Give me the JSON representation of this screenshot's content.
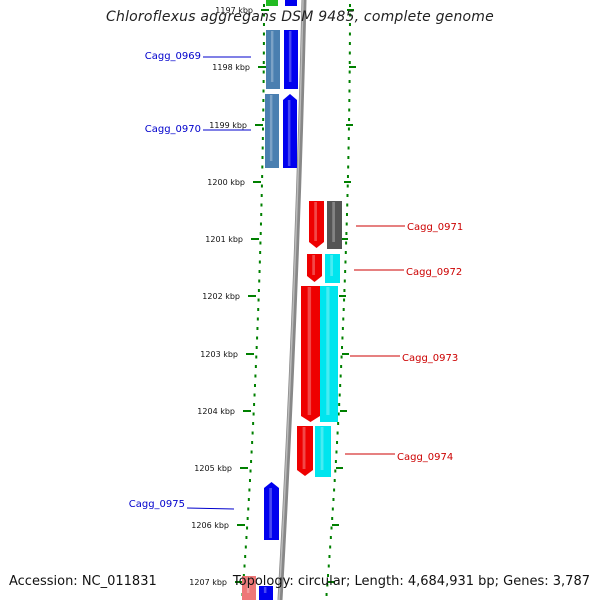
{
  "title": "Chloroflexus aggregans DSM 9485, complete genome",
  "footer": {
    "accession": "Accession: NC_011831",
    "summary": "Topology: circular; Length: 4,684,931 bp; Genes: 3,787"
  },
  "colors": {
    "blue": "#0000ee",
    "steelblue": "#4a7fb0",
    "red": "#ee0000",
    "cyan": "#00e5ee",
    "gray": "#555555",
    "green": "#22bb22",
    "pink": "#ee7777",
    "ruler": "#008000",
    "backbone": "#888888",
    "label_blue": "#0000cc",
    "label_red": "#cc0000"
  },
  "ticks": [
    "1197 kbp",
    "1198 kbp",
    "1199 kbp",
    "1200 kbp",
    "1201 kbp",
    "1202 kbp",
    "1203 kbp",
    "1204 kbp",
    "1205 kbp",
    "1206 kbp",
    "1207 kbp"
  ],
  "genes": [
    {
      "label": "Cagg_0969",
      "strand": "forward"
    },
    {
      "label": "Cagg_0970",
      "strand": "forward"
    },
    {
      "label": "Cagg_0971",
      "strand": "reverse"
    },
    {
      "label": "Cagg_0972",
      "strand": "reverse"
    },
    {
      "label": "Cagg_0973",
      "strand": "reverse"
    },
    {
      "label": "Cagg_0974",
      "strand": "reverse"
    },
    {
      "label": "Cagg_0975",
      "strand": "forward"
    }
  ]
}
